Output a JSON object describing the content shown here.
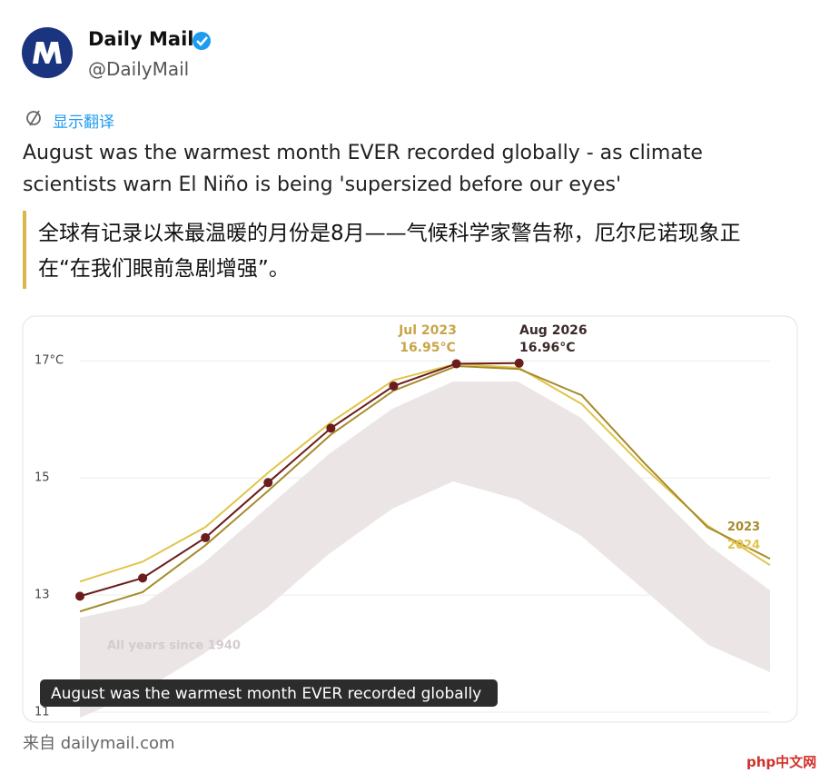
{
  "header": {
    "name": "Daily Mail",
    "handle": "@DailyMail"
  },
  "translate_link": "显示翻译",
  "tweet_text": "August was the warmest month EVER recorded globally - as climate scientists warn El Niño is being 'supersized before our eyes'",
  "translation": "全球有记录以来最温暖的月份是8月——气候科学家警告称，厄尔尼诺现象正在“在我们眼前急剧增强”。",
  "chart_data": {
    "type": "line",
    "categories": [
      null,
      null,
      null,
      null,
      null,
      null,
      null,
      null,
      null,
      null,
      null,
      null
    ],
    "series": [
      {
        "name": "2024",
        "color": "#e0c54a",
        "values": [
          13.23,
          13.57,
          14.16,
          15.09,
          15.95,
          16.67,
          16.95,
          16.88,
          16.26,
          15.17,
          14.19,
          13.51
        ]
      },
      {
        "name": "2023",
        "color": "#a68b2c",
        "values": [
          12.72,
          13.05,
          13.85,
          14.78,
          15.74,
          16.49,
          16.91,
          16.86,
          16.41,
          15.25,
          14.16,
          13.62
        ]
      },
      {
        "color": "#6b1c1c",
        "values": [
          12.98,
          13.29,
          13.98,
          14.92,
          15.85,
          16.57,
          16.95,
          16.96,
          null,
          null,
          null,
          null
        ]
      }
    ],
    "ylim": [
      11,
      17.5
    ],
    "yticks": [
      11,
      13,
      15,
      {
        "value": 17,
        "label": "17°C"
      }
    ],
    "grid": true,
    "annotations": [
      "Jul 2023",
      "16.95°C",
      "Aug 2026",
      "16.96°C",
      "All years since 1940"
    ],
    "caption": "August was the warmest month EVER recorded globally"
  },
  "source": "来自 dailymail.com",
  "watermark": "php中文网"
}
